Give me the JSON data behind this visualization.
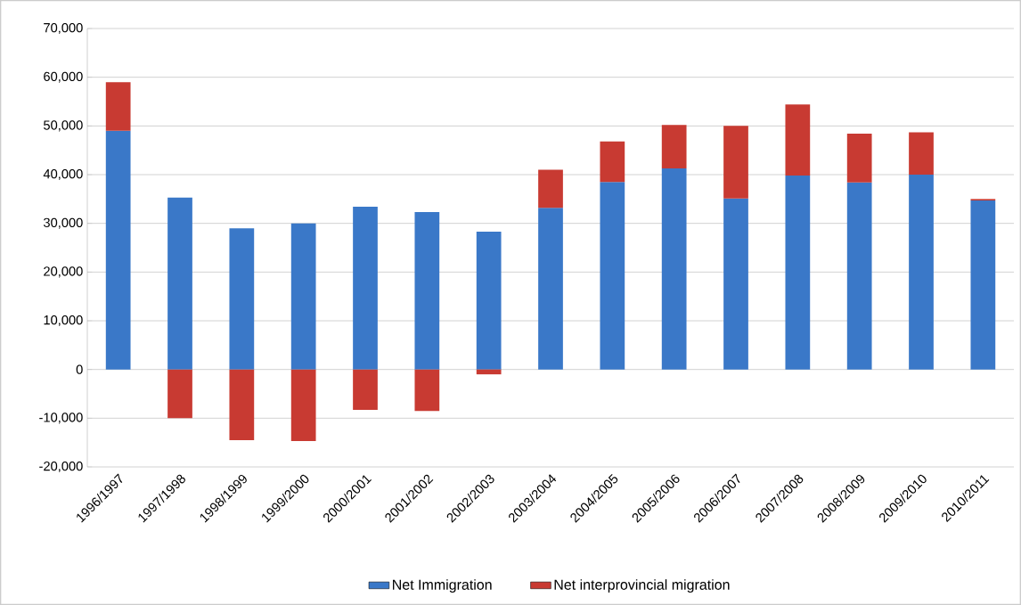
{
  "chart_data": {
    "type": "bar",
    "stacked": true,
    "categories": [
      "1996/1997",
      "1997/1998",
      "1998/1999",
      "1999/2000",
      "2000/2001",
      "2001/2002",
      "2002/2003",
      "2003/2004",
      "2004/2005",
      "2005/2006",
      "2006/2007",
      "2007/2008",
      "2008/2009",
      "2009/2010",
      "2010/2011"
    ],
    "series": [
      {
        "name": "Net Immigration",
        "color": "#3a78c8",
        "values": [
          49000,
          35300,
          29000,
          30000,
          33400,
          32300,
          28300,
          33200,
          38500,
          41300,
          35100,
          39800,
          38400,
          40000,
          34700
        ]
      },
      {
        "name": "Net interprovincial migration",
        "color": "#c83a32",
        "values": [
          10000,
          -10000,
          -14500,
          -14700,
          -8300,
          -8500,
          -1000,
          7800,
          8300,
          8900,
          14900,
          14600,
          10000,
          8700,
          300
        ]
      }
    ],
    "ylim": [
      -20000,
      70000
    ],
    "yticks": [
      {
        "value": -20000,
        "label": "-20,000"
      },
      {
        "value": -10000,
        "label": "-10,000"
      },
      {
        "value": 0,
        "label": "0"
      },
      {
        "value": 10000,
        "label": "10,000"
      },
      {
        "value": 20000,
        "label": "20,000"
      },
      {
        "value": 30000,
        "label": "30,000"
      },
      {
        "value": 40000,
        "label": "40,000"
      },
      {
        "value": 50000,
        "label": "50,000"
      },
      {
        "value": 60000,
        "label": "60,000"
      },
      {
        "value": 70000,
        "label": "70,000"
      }
    ],
    "grid": "y",
    "legend": "bottom"
  }
}
